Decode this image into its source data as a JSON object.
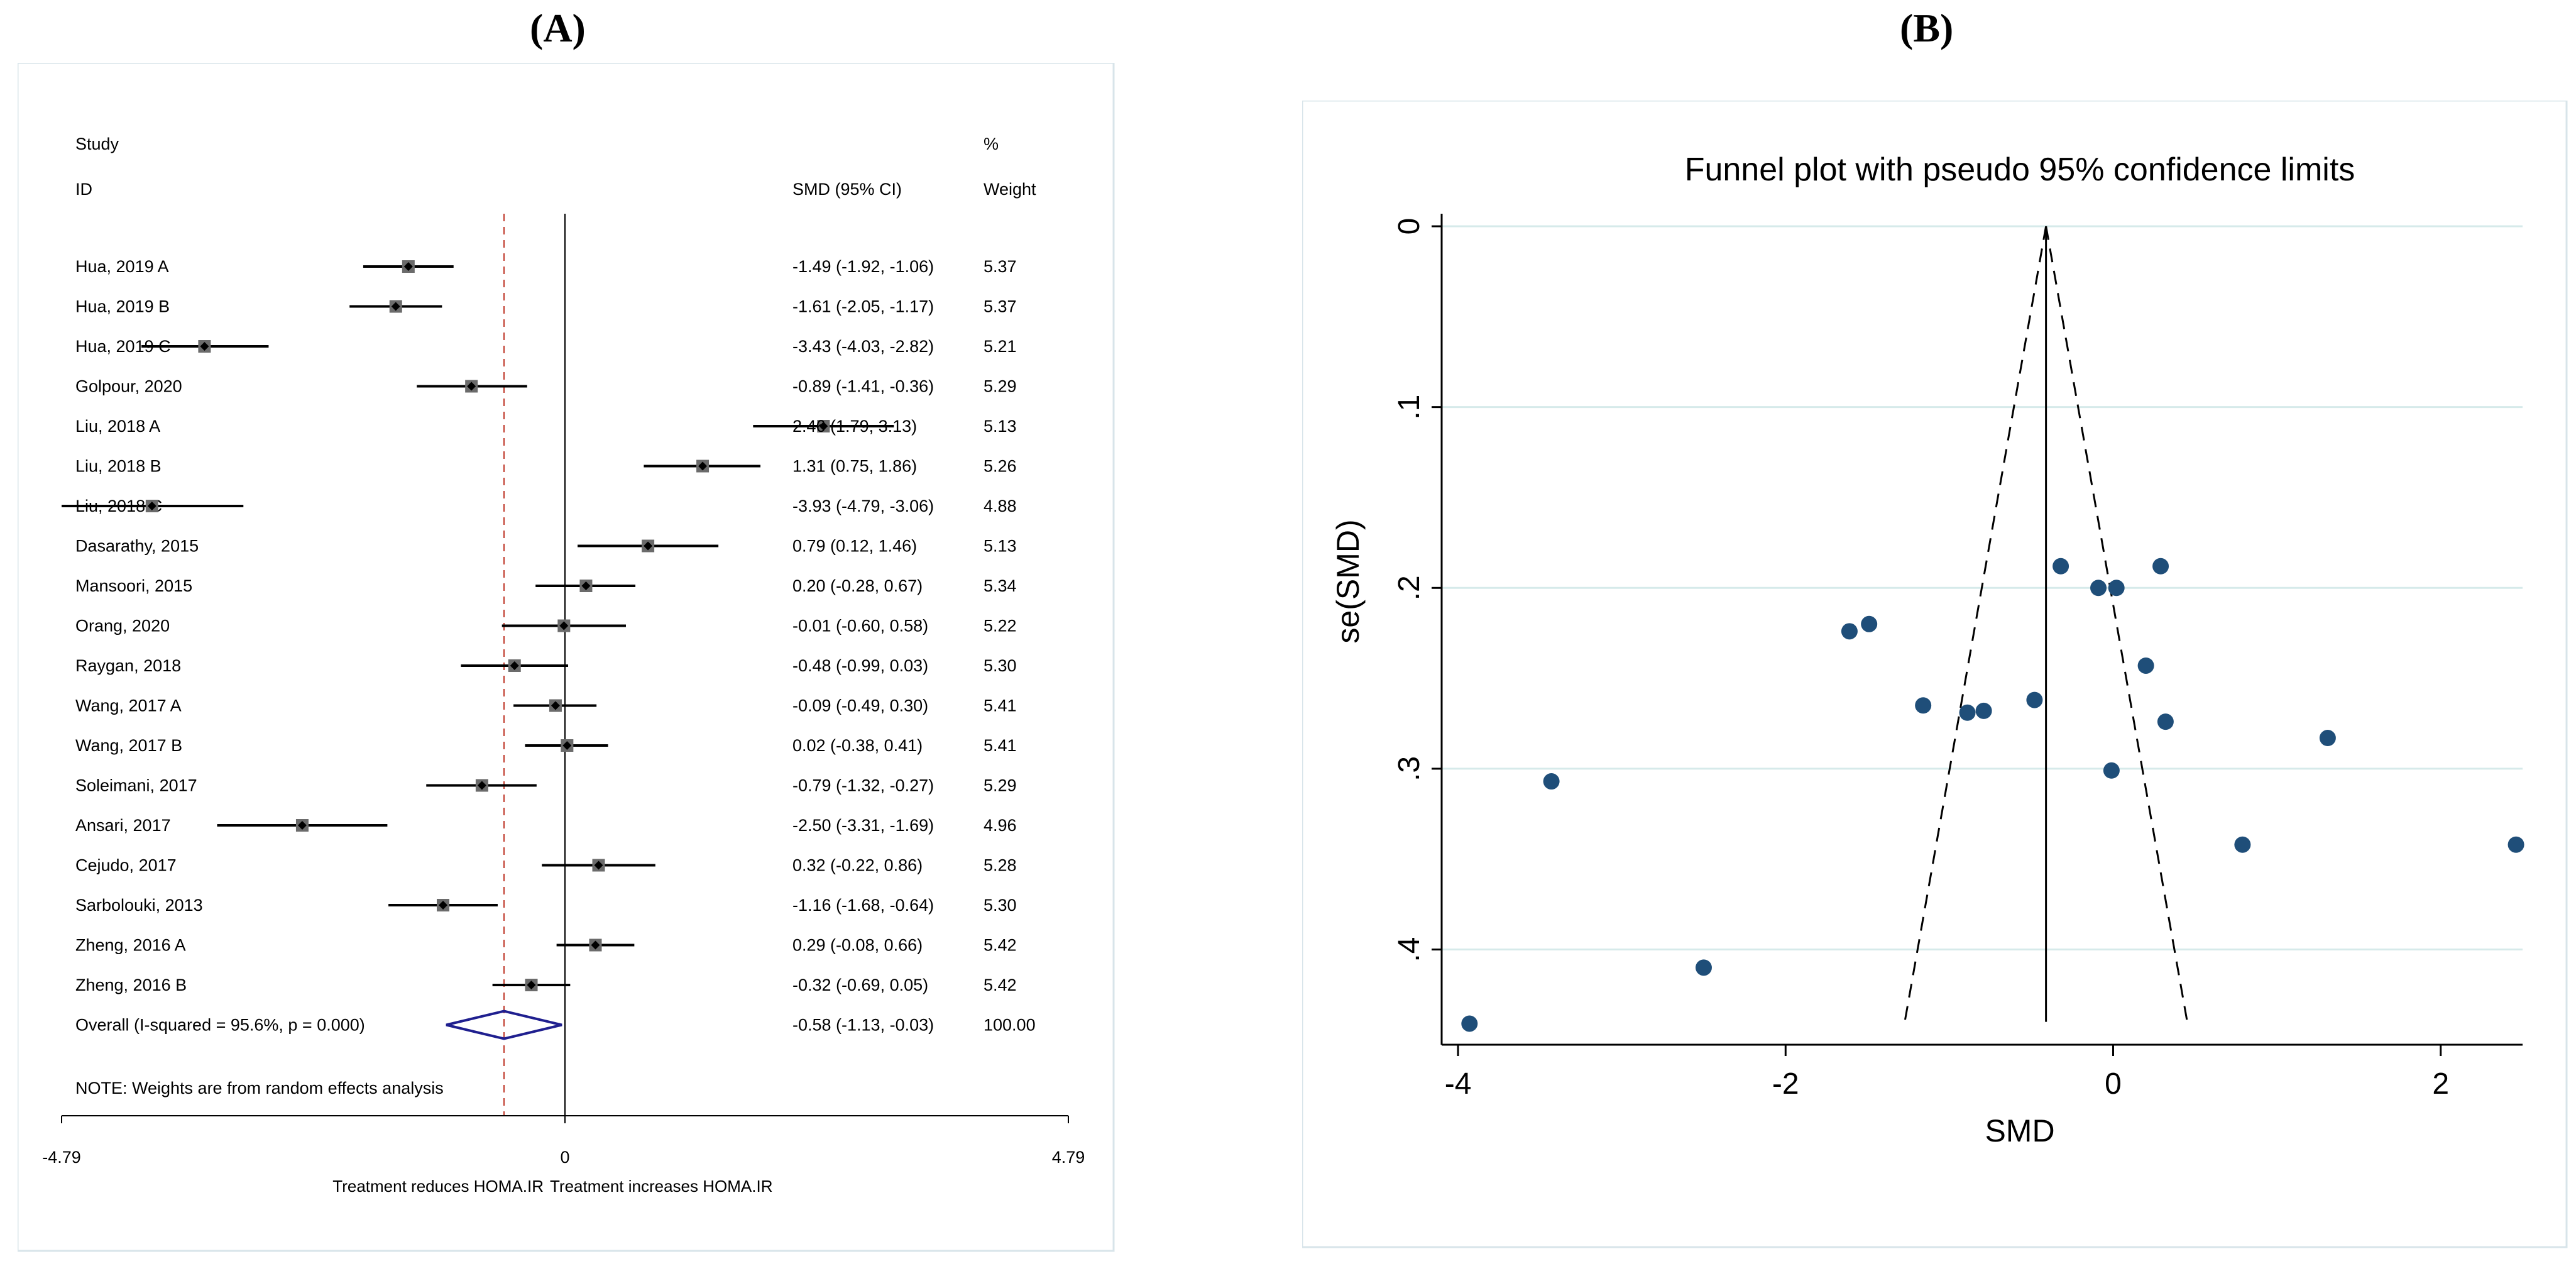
{
  "panels": {
    "a": "A",
    "b": "B"
  },
  "chart_data": [
    {
      "type": "forest",
      "headers": {
        "study": "Study",
        "id": "ID",
        "smd": "SMD (95% CI)",
        "pct": "%",
        "weight": "Weight"
      },
      "studies": [
        {
          "name": "Hua, 2019 A",
          "smd": -1.49,
          "lo": -1.92,
          "hi": -1.06,
          "ci": "-1.49 (-1.92, -1.06)",
          "weight": "5.37"
        },
        {
          "name": "Hua, 2019 B",
          "smd": -1.61,
          "lo": -2.05,
          "hi": -1.17,
          "ci": "-1.61 (-2.05, -1.17)",
          "weight": "5.37"
        },
        {
          "name": "Hua, 2019 C",
          "smd": -3.43,
          "lo": -4.03,
          "hi": -2.82,
          "ci": "-3.43 (-4.03, -2.82)",
          "weight": "5.21"
        },
        {
          "name": "Golpour, 2020",
          "smd": -0.89,
          "lo": -1.41,
          "hi": -0.36,
          "ci": "-0.89 (-1.41, -0.36)",
          "weight": "5.29"
        },
        {
          "name": "Liu, 2018 A",
          "smd": 2.46,
          "lo": 1.79,
          "hi": 3.13,
          "ci": "2.46 (1.79, 3.13)",
          "weight": "5.13"
        },
        {
          "name": "Liu, 2018 B",
          "smd": 1.31,
          "lo": 0.75,
          "hi": 1.86,
          "ci": "1.31 (0.75, 1.86)",
          "weight": "5.26"
        },
        {
          "name": "Liu, 2018 C",
          "smd": -3.93,
          "lo": -4.79,
          "hi": -3.06,
          "ci": "-3.93 (-4.79, -3.06)",
          "weight": "4.88"
        },
        {
          "name": "Dasarathy, 2015",
          "smd": 0.79,
          "lo": 0.12,
          "hi": 1.46,
          "ci": "0.79 (0.12, 1.46)",
          "weight": "5.13"
        },
        {
          "name": "Mansoori, 2015",
          "smd": 0.2,
          "lo": -0.28,
          "hi": 0.67,
          "ci": "0.20 (-0.28, 0.67)",
          "weight": "5.34"
        },
        {
          "name": "Orang, 2020",
          "smd": -0.01,
          "lo": -0.6,
          "hi": 0.58,
          "ci": "-0.01 (-0.60, 0.58)",
          "weight": "5.22"
        },
        {
          "name": "Raygan, 2018",
          "smd": -0.48,
          "lo": -0.99,
          "hi": 0.03,
          "ci": "-0.48 (-0.99, 0.03)",
          "weight": "5.30"
        },
        {
          "name": "Wang, 2017 A",
          "smd": -0.09,
          "lo": -0.49,
          "hi": 0.3,
          "ci": "-0.09 (-0.49, 0.30)",
          "weight": "5.41"
        },
        {
          "name": "Wang, 2017 B",
          "smd": 0.02,
          "lo": -0.38,
          "hi": 0.41,
          "ci": "0.02 (-0.38, 0.41)",
          "weight": "5.41"
        },
        {
          "name": "Soleimani, 2017",
          "smd": -0.79,
          "lo": -1.32,
          "hi": -0.27,
          "ci": "-0.79 (-1.32, -0.27)",
          "weight": "5.29"
        },
        {
          "name": "Ansari, 2017",
          "smd": -2.5,
          "lo": -3.31,
          "hi": -1.69,
          "ci": "-2.50 (-3.31, -1.69)",
          "weight": "4.96"
        },
        {
          "name": "Cejudo, 2017",
          "smd": 0.32,
          "lo": -0.22,
          "hi": 0.86,
          "ci": "0.32 (-0.22, 0.86)",
          "weight": "5.28"
        },
        {
          "name": "Sarbolouki, 2013",
          "smd": -1.16,
          "lo": -1.68,
          "hi": -0.64,
          "ci": "-1.16 (-1.68, -0.64)",
          "weight": "5.30"
        },
        {
          "name": "Zheng, 2016 A",
          "smd": 0.29,
          "lo": -0.08,
          "hi": 0.66,
          "ci": "0.29 (-0.08, 0.66)",
          "weight": "5.42"
        },
        {
          "name": "Zheng, 2016 B",
          "smd": -0.32,
          "lo": -0.69,
          "hi": 0.05,
          "ci": "-0.32 (-0.69, 0.05)",
          "weight": "5.42"
        }
      ],
      "overall": {
        "label": "Overall  (I-squared = 95.6%, p = 0.000)",
        "smd": -0.58,
        "lo": -1.13,
        "hi": -0.03,
        "ci": "-0.58 (-1.13, -0.03)",
        "weight": "100.00"
      },
      "note": "NOTE: Weights are from random effects analysis",
      "xlim": [
        -4.79,
        4.79
      ],
      "ticks": [
        "-4.79",
        "0",
        "4.79"
      ],
      "footer_left": "Treatment reduces HOMA.IR",
      "footer_right": "Treatment increases HOMA.IR",
      "colors": {
        "overall": "#1f1f8f",
        "dashed": "#c0392b"
      }
    },
    {
      "type": "scatter",
      "title": "Funnel plot with pseudo 95% confidence limits",
      "xlabel": "SMD",
      "ylabel": "se(SMD)",
      "xlim": [
        -4.1,
        2.5
      ],
      "ylim": [
        0,
        0.445
      ],
      "xticks": [
        -4,
        -2,
        0,
        2
      ],
      "xtick_labels": [
        "-4",
        "-2",
        "0",
        "2"
      ],
      "yticks": [
        0,
        0.1,
        0.2,
        0.3,
        0.4
      ],
      "ytick_labels": [
        "0",
        ".1",
        ".2",
        ".3",
        ".4"
      ],
      "pooled": -0.41,
      "points": [
        {
          "x": -1.49,
          "y": 0.22
        },
        {
          "x": -1.61,
          "y": 0.224
        },
        {
          "x": -3.43,
          "y": 0.307
        },
        {
          "x": -0.89,
          "y": 0.269
        },
        {
          "x": 2.46,
          "y": 0.342
        },
        {
          "x": 1.31,
          "y": 0.283
        },
        {
          "x": -3.93,
          "y": 0.441
        },
        {
          "x": 0.79,
          "y": 0.342
        },
        {
          "x": 0.2,
          "y": 0.243
        },
        {
          "x": -0.01,
          "y": 0.301
        },
        {
          "x": -0.48,
          "y": 0.262
        },
        {
          "x": -0.09,
          "y": 0.2
        },
        {
          "x": 0.02,
          "y": 0.2
        },
        {
          "x": -0.79,
          "y": 0.268
        },
        {
          "x": -2.5,
          "y": 0.41
        },
        {
          "x": 0.32,
          "y": 0.274
        },
        {
          "x": -1.16,
          "y": 0.265
        },
        {
          "x": 0.29,
          "y": 0.188
        },
        {
          "x": -0.32,
          "y": 0.188
        }
      ],
      "colors": {
        "point": "#1f4e79",
        "grid": "#d6eaea"
      }
    }
  ]
}
